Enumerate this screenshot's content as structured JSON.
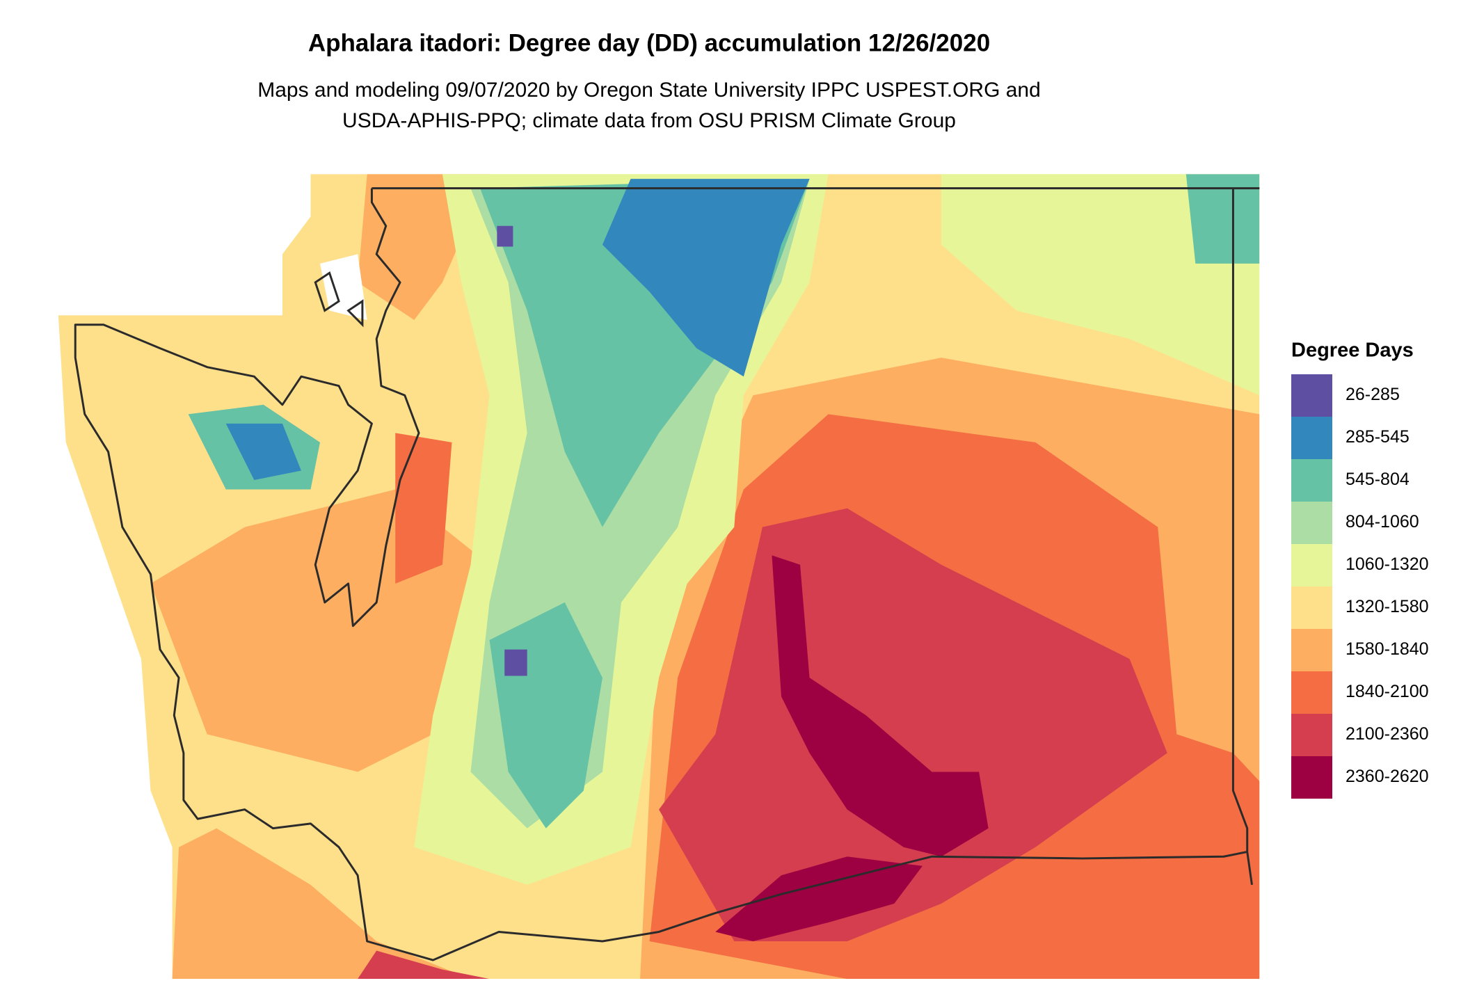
{
  "title": "Aphalara itadori: Degree day (DD) accumulation 12/26/2020",
  "subtitle": [
    "Maps and modeling 09/07/2020 by Oregon State University IPPC USPEST.ORG and",
    "USDA-APHIS-PPQ; climate data from OSU PRISM Climate Group"
  ],
  "legend": {
    "title": "Degree Days",
    "items": [
      {
        "label": "26-285",
        "color": "#5e4fa2"
      },
      {
        "label": "285-545",
        "color": "#3288bd"
      },
      {
        "label": "545-804",
        "color": "#66c2a5"
      },
      {
        "label": "804-1060",
        "color": "#abdda4"
      },
      {
        "label": "1060-1320",
        "color": "#e6f598"
      },
      {
        "label": "1320-1580",
        "color": "#fee08b"
      },
      {
        "label": "1580-1840",
        "color": "#fdae61"
      },
      {
        "label": "1840-2100",
        "color": "#f46d43"
      },
      {
        "label": "2100-2360",
        "color": "#d53e4f"
      },
      {
        "label": "2360-2620",
        "color": "#9e0142"
      }
    ]
  }
}
